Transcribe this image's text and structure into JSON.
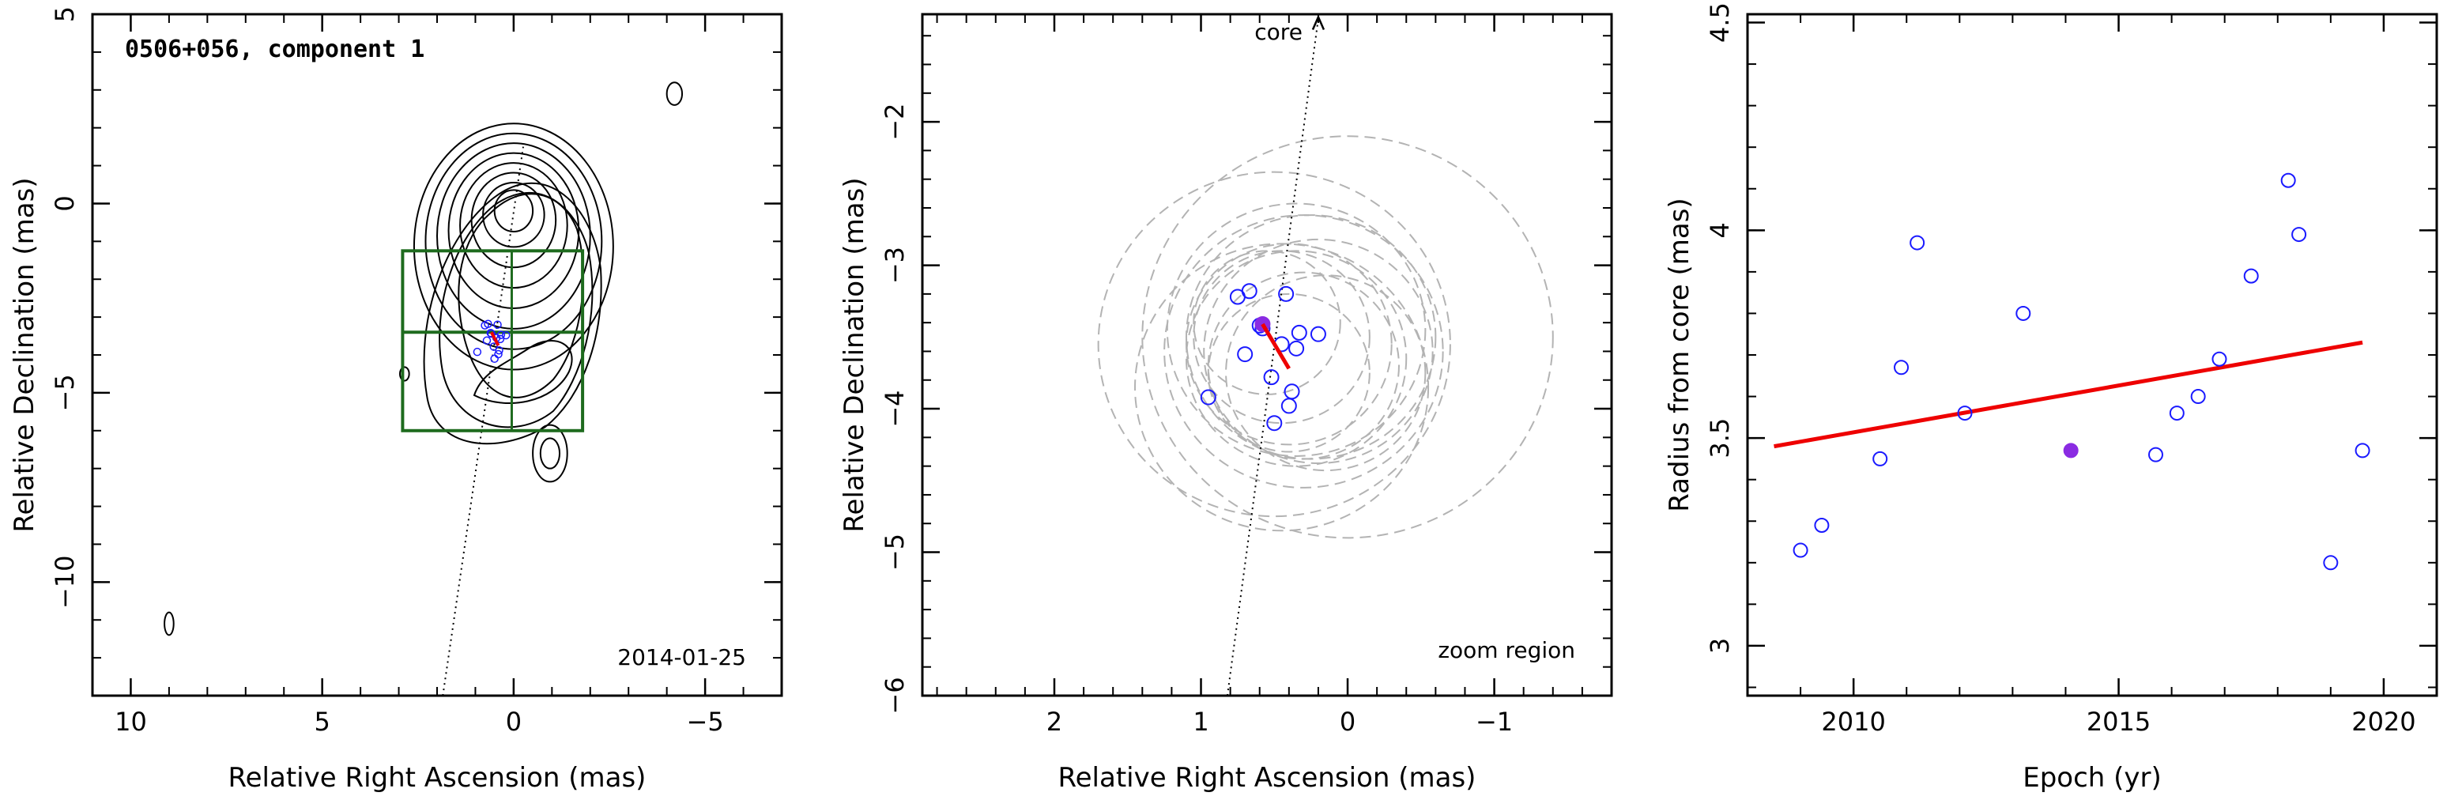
{
  "chart_data": [
    {
      "type": "scatter",
      "panel": "image",
      "title": "0506+056, component 1",
      "date": "2014-01-25",
      "xlabel": "Relative Right Ascension (mas)",
      "ylabel": "Relative Declination (mas)",
      "xlim": [
        11,
        -7
      ],
      "ylim": [
        -13,
        5
      ],
      "xticks": [
        10,
        5,
        0,
        -5
      ],
      "yticks": [
        5,
        0,
        -5,
        -10
      ],
      "grid": false,
      "box": {
        "x": [
          2.9,
          -1.8
        ],
        "y": [
          -6.0,
          -1.25
        ],
        "mid_y": -3.4
      },
      "component_fit": {
        "x": 0.5,
        "y": -3.45
      },
      "core_direction_line": {
        "x": [
          1.85,
          -0.25
        ],
        "y": [
          -13,
          1.5
        ]
      },
      "contours_core": {
        "x": 0,
        "y": 0,
        "levels_rx": [
          0.5,
          0.8,
          1.1,
          1.4,
          1.7,
          2.0,
          2.3,
          2.6
        ],
        "levels_ry": [
          0.55,
          0.85,
          1.25,
          1.65,
          2.05,
          2.45,
          2.85,
          3.25
        ]
      },
      "contour_blobs": [
        {
          "x": -4.2,
          "y": 2.9,
          "rx": 0.2,
          "ry": 0.3
        },
        {
          "x": -0.95,
          "y": -6.6,
          "rx": 0.25,
          "ry": 0.4
        },
        {
          "x": -0.95,
          "y": -6.6,
          "rx": 0.45,
          "ry": 0.75
        },
        {
          "x": 9.0,
          "y": -11.1,
          "rx": 0.12,
          "ry": 0.3
        },
        {
          "x": 2.85,
          "y": -4.5,
          "rx": 0.12,
          "ry": 0.18
        }
      ]
    },
    {
      "type": "scatter",
      "panel": "zoom",
      "annotation": "zoom region",
      "core_label": "core",
      "xlabel": "Relative Right Ascension (mas)",
      "ylabel": "Relative Declination (mas)",
      "xlim": [
        2.9,
        -1.8
      ],
      "ylim": [
        -6,
        -1.25
      ],
      "xticks": [
        2,
        1,
        0,
        -1
      ],
      "yticks": [
        -2,
        -3,
        -4,
        -5,
        -6
      ],
      "grid": false,
      "points": [
        {
          "x": 0.95,
          "y": -3.92
        },
        {
          "x": 0.75,
          "y": -3.22
        },
        {
          "x": 0.67,
          "y": -3.18
        },
        {
          "x": 0.6,
          "y": -3.42
        },
        {
          "x": 0.58,
          "y": -3.44
        },
        {
          "x": 0.7,
          "y": -3.62
        },
        {
          "x": 0.52,
          "y": -3.78
        },
        {
          "x": 0.45,
          "y": -3.55
        },
        {
          "x": 0.42,
          "y": -3.2
        },
        {
          "x": 0.38,
          "y": -3.88
        },
        {
          "x": 0.4,
          "y": -3.98
        },
        {
          "x": 0.5,
          "y": -4.1
        },
        {
          "x": 0.33,
          "y": -3.47
        },
        {
          "x": 0.35,
          "y": -3.58
        },
        {
          "x": 0.2,
          "y": -3.48
        }
      ],
      "highlight_point": {
        "x": 0.58,
        "y": -3.41
      },
      "motion_vector": {
        "x": [
          0.58,
          0.4
        ],
        "y": [
          -3.41,
          -3.72
        ]
      },
      "component_sizes": [
        {
          "x": 0.0,
          "y": -3.5,
          "r": 1.4
        },
        {
          "x": 0.5,
          "y": -3.55,
          "r": 1.2
        },
        {
          "x": 0.3,
          "y": -3.6,
          "r": 0.95
        },
        {
          "x": 0.25,
          "y": -3.5,
          "r": 0.85
        },
        {
          "x": 0.35,
          "y": -3.65,
          "r": 0.75
        },
        {
          "x": 0.4,
          "y": -3.55,
          "r": 0.7
        },
        {
          "x": 0.3,
          "y": -3.7,
          "r": 0.65
        },
        {
          "x": 0.45,
          "y": -3.5,
          "r": 0.6
        },
        {
          "x": 0.2,
          "y": -3.6,
          "r": 0.78
        },
        {
          "x": 0.4,
          "y": -3.75,
          "r": 0.55
        },
        {
          "x": 0.35,
          "y": -3.45,
          "r": 0.88
        },
        {
          "x": 0.55,
          "y": -3.4,
          "r": 0.5
        },
        {
          "x": 0.15,
          "y": -3.75,
          "r": 0.68
        },
        {
          "x": 0.45,
          "y": -3.85,
          "r": 1.0
        }
      ],
      "core_direction_line": {
        "x": [
          0.82,
          0.2
        ],
        "y": [
          -6,
          -1.28
        ]
      }
    },
    {
      "type": "scatter",
      "panel": "radius_vs_epoch",
      "xlabel": "Epoch (yr)",
      "ylabel": "Radius from core (mas)",
      "xlim": [
        2008,
        2021
      ],
      "ylim": [
        2.88,
        4.52
      ],
      "xticks": [
        2010,
        2015,
        2020
      ],
      "yticks": [
        3,
        3.5,
        4,
        4.5
      ],
      "grid": false,
      "points": [
        {
          "x": 2009.0,
          "y": 3.23
        },
        {
          "x": 2009.4,
          "y": 3.29
        },
        {
          "x": 2010.5,
          "y": 3.45
        },
        {
          "x": 2010.9,
          "y": 3.67
        },
        {
          "x": 2011.2,
          "y": 3.97
        },
        {
          "x": 2012.1,
          "y": 3.56
        },
        {
          "x": 2013.2,
          "y": 3.8
        },
        {
          "x": 2015.7,
          "y": 3.46
        },
        {
          "x": 2016.1,
          "y": 3.56
        },
        {
          "x": 2016.5,
          "y": 3.6
        },
        {
          "x": 2016.9,
          "y": 3.69
        },
        {
          "x": 2017.5,
          "y": 3.89
        },
        {
          "x": 2018.2,
          "y": 4.12
        },
        {
          "x": 2018.4,
          "y": 3.99
        },
        {
          "x": 2019.0,
          "y": 3.2
        },
        {
          "x": 2019.6,
          "y": 3.47
        }
      ],
      "highlight_point": {
        "x": 2014.1,
        "y": 3.47
      },
      "fit_line": {
        "x": [
          2008.5,
          2019.6
        ],
        "y": [
          3.48,
          3.73
        ]
      }
    }
  ],
  "colors": {
    "open_marker": "#1a1aff",
    "highlight_marker": "#8a2be2",
    "fit_line": "#ee0000",
    "box": "#1e6b1e",
    "ellipse": "#b3b3b3",
    "axis": "#000000"
  }
}
